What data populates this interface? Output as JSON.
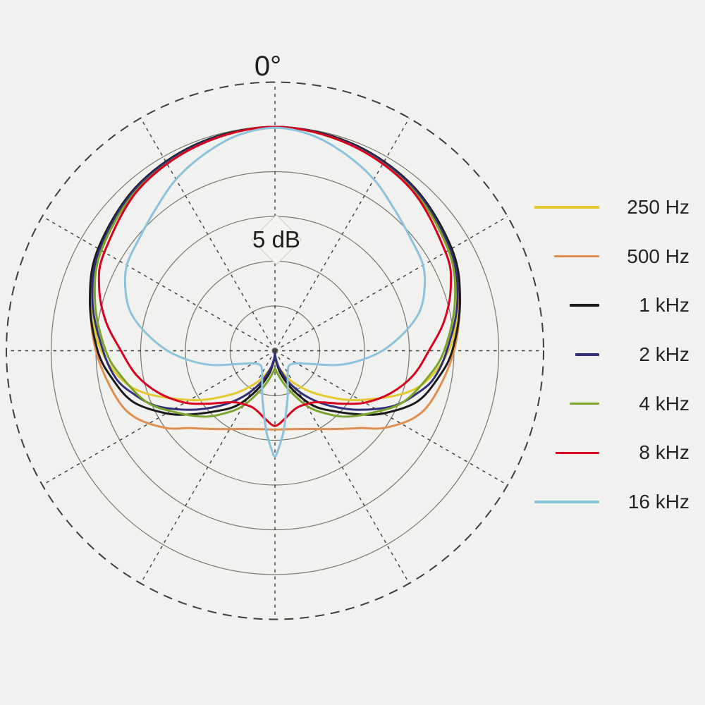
{
  "labels": {
    "angle_zero": "0°",
    "scale": "5 dB"
  },
  "legend": {
    "items": [
      {
        "label": "250 Hz",
        "color": "#e3c931",
        "swatch_length": 92
      },
      {
        "label": "500 Hz",
        "color": "#df8e4f",
        "swatch_length": 64
      },
      {
        "label": "1 kHz",
        "color": "#1a1a1a",
        "swatch_length": 42
      },
      {
        "label": "2 kHz",
        "color": "#31317a",
        "swatch_length": 34
      },
      {
        "label": "4 kHz",
        "color": "#7ca32c",
        "swatch_length": 42
      },
      {
        "label": "8 kHz",
        "color": "#d8001f",
        "swatch_length": 62
      },
      {
        "label": "16 kHz",
        "color": "#8cc3dc",
        "swatch_length": 92
      }
    ]
  },
  "chart_data": {
    "type": "polar-line",
    "title": "",
    "zero_angle_position": "top",
    "angle_grid_step_deg": 30,
    "radial_db_per_division": 5,
    "radial_divisions": 5,
    "outer_ring_db": 0,
    "legend_position": "right",
    "angle_label_shown": "0°",
    "scale_label_shown": "5 dB",
    "series": [
      {
        "name": "250 Hz",
        "color": "#e3c931",
        "points_deg_db": [
          [
            0,
            0
          ],
          [
            20,
            -0.4
          ],
          [
            40,
            -1.1
          ],
          [
            60,
            -2.5
          ],
          [
            75,
            -3.9
          ],
          [
            90,
            -5.6
          ],
          [
            105,
            -8.7
          ],
          [
            120,
            -14.0
          ],
          [
            135,
            -18.1
          ],
          [
            150,
            -20.9
          ],
          [
            162,
            -22.6
          ],
          [
            172,
            -23.5
          ],
          [
            180,
            -23.8
          ]
        ]
      },
      {
        "name": "500 Hz",
        "color": "#df8e4f",
        "points_deg_db": [
          [
            0,
            0
          ],
          [
            20,
            -0.4
          ],
          [
            40,
            -1.2
          ],
          [
            60,
            -2.6
          ],
          [
            75,
            -3.7
          ],
          [
            90,
            -5.0
          ],
          [
            105,
            -6.4
          ],
          [
            115,
            -7.6
          ],
          [
            125,
            -10.0
          ],
          [
            132,
            -12.1
          ],
          [
            140,
            -13.6
          ],
          [
            150,
            -14.9
          ],
          [
            160,
            -15.7
          ],
          [
            170,
            -16.1
          ],
          [
            180,
            -16.2
          ]
        ]
      },
      {
        "name": "1 kHz",
        "color": "#1a1a1a",
        "points_deg_db": [
          [
            0,
            0
          ],
          [
            20,
            -0.3
          ],
          [
            40,
            -1.0
          ],
          [
            60,
            -2.2
          ],
          [
            75,
            -3.6
          ],
          [
            90,
            -5.2
          ],
          [
            100,
            -6.6
          ],
          [
            110,
            -8.2
          ],
          [
            120,
            -11.0
          ],
          [
            127,
            -13.2
          ],
          [
            135,
            -15.4
          ],
          [
            145,
            -17.5
          ],
          [
            155,
            -20.1
          ],
          [
            165,
            -22.2
          ],
          [
            172,
            -23.6
          ],
          [
            177,
            -24.4
          ],
          [
            180,
            -24.6
          ]
        ]
      },
      {
        "name": "2 kHz",
        "color": "#31317a",
        "points_deg_db": [
          [
            0,
            0
          ],
          [
            20,
            -0.4
          ],
          [
            40,
            -1.1
          ],
          [
            60,
            -2.4
          ],
          [
            75,
            -3.9
          ],
          [
            90,
            -5.8
          ],
          [
            100,
            -7.0
          ],
          [
            107,
            -8.5
          ],
          [
            115,
            -10.4
          ],
          [
            125,
            -13.5
          ],
          [
            135,
            -16.3
          ],
          [
            145,
            -18.7
          ],
          [
            155,
            -20.9
          ],
          [
            165,
            -22.8
          ],
          [
            172,
            -23.9
          ],
          [
            177,
            -24.5
          ],
          [
            180,
            -24.7
          ]
        ]
      },
      {
        "name": "4 kHz",
        "color": "#7ca32c",
        "points_deg_db": [
          [
            0,
            0
          ],
          [
            20,
            -0.5
          ],
          [
            40,
            -1.3
          ],
          [
            60,
            -2.6
          ],
          [
            75,
            -4.2
          ],
          [
            90,
            -6.1
          ],
          [
            100,
            -7.7
          ],
          [
            112,
            -9.6
          ],
          [
            122,
            -12.0
          ],
          [
            133,
            -14.2
          ],
          [
            142,
            -16.2
          ],
          [
            150,
            -17.9
          ],
          [
            160,
            -20.3
          ],
          [
            168,
            -21.7
          ],
          [
            175,
            -22.6
          ],
          [
            180,
            -23.0
          ]
        ]
      },
      {
        "name": "8 kHz",
        "color": "#d8001f",
        "points_deg_db": [
          [
            0,
            0
          ],
          [
            20,
            -0.5
          ],
          [
            40,
            -1.4
          ],
          [
            60,
            -3.0
          ],
          [
            70,
            -4.1
          ],
          [
            80,
            -5.8
          ],
          [
            90,
            -7.8
          ],
          [
            100,
            -9.3
          ],
          [
            110,
            -11.2
          ],
          [
            120,
            -13.4
          ],
          [
            128,
            -15.4
          ],
          [
            135,
            -16.8
          ],
          [
            142,
            -17.7
          ],
          [
            150,
            -18.1
          ],
          [
            158,
            -18.2
          ],
          [
            165,
            -17.9
          ],
          [
            172,
            -17.3
          ],
          [
            180,
            -16.6
          ]
        ]
      },
      {
        "name": "16 kHz",
        "color": "#8cc3dc",
        "points_deg_db": [
          [
            0,
            -0.1
          ],
          [
            10,
            -0.6
          ],
          [
            20,
            -1.7
          ],
          [
            30,
            -2.9
          ],
          [
            40,
            -4.3
          ],
          [
            50,
            -5.3
          ],
          [
            60,
            -5.9
          ],
          [
            68,
            -7.0
          ],
          [
            75,
            -8.3
          ],
          [
            82,
            -10.4
          ],
          [
            90,
            -13.0
          ],
          [
            97,
            -15.6
          ],
          [
            103,
            -17.9
          ],
          [
            110,
            -20.7
          ],
          [
            118,
            -22.0
          ],
          [
            128,
            -22.6
          ],
          [
            138,
            -22.7
          ],
          [
            148,
            -22.3
          ],
          [
            156,
            -21.5
          ],
          [
            163,
            -20.1
          ],
          [
            169,
            -18.3
          ],
          [
            174,
            -15.9
          ],
          [
            178,
            -14.0
          ],
          [
            180,
            -13.2
          ]
        ]
      }
    ]
  }
}
